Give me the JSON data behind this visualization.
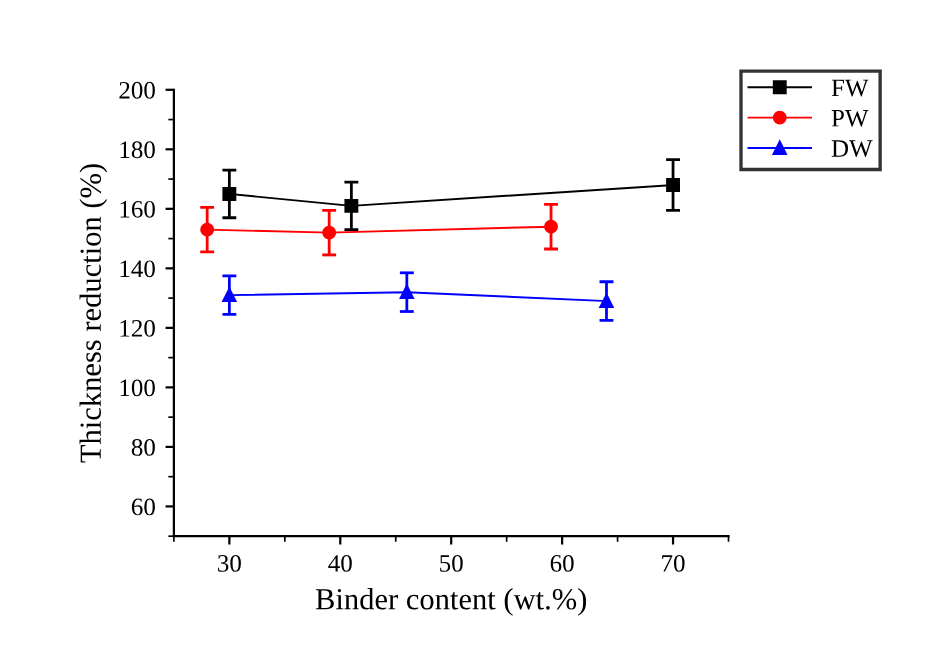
{
  "chart_data": {
    "type": "line",
    "xlabel": "Binder content (wt.%)",
    "ylabel": "Thickness reduction (%)",
    "xlim": [
      25,
      75
    ],
    "xticks": [
      30,
      40,
      50,
      60,
      70
    ],
    "ylim": [
      50,
      200
    ],
    "yticks": [
      60,
      80,
      100,
      120,
      140,
      160,
      180,
      200
    ],
    "grid": false,
    "legend": "top right",
    "line_style": "solid",
    "series": [
      {
        "name": "FW",
        "color": "#000000",
        "marker": "square",
        "x": [
          30,
          41,
          70
        ],
        "values": [
          165,
          161,
          168
        ],
        "errors": [
          8,
          8,
          8.5
        ]
      },
      {
        "name": "PW",
        "color": "#ff0000",
        "marker": "circle",
        "x": [
          28,
          39,
          59
        ],
        "values": [
          153,
          152,
          154
        ],
        "errors": [
          7.5,
          7.5,
          7.5
        ]
      },
      {
        "name": "DW",
        "color": "#0000ff",
        "marker": "triangle",
        "x": [
          30,
          46,
          64
        ],
        "values": [
          131,
          132,
          129
        ],
        "errors": [
          6.5,
          6.5,
          6.5
        ]
      }
    ]
  }
}
